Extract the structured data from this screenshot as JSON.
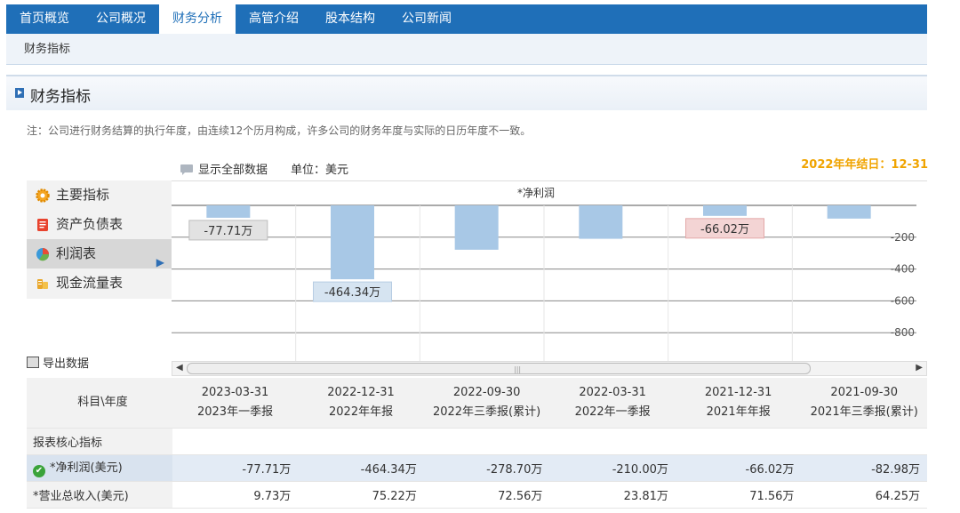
{
  "nav": {
    "tabs": [
      {
        "label": "首页概览"
      },
      {
        "label": "公司概况"
      },
      {
        "label": "财务分析"
      },
      {
        "label": "高管介绍"
      },
      {
        "label": "股本结构"
      },
      {
        "label": "公司新闻"
      }
    ],
    "active_index": 2,
    "sub_label": "财务指标"
  },
  "section": {
    "title": "财务指标",
    "note": "注：公司进行财务结算的执行年度，由连续12个历月构成，许多公司的财务年度与实际的日历年度不一致。",
    "show_all_label": "显示全部数据",
    "unit_label": "单位：美元",
    "fiscal_year_end": "2022年年结日：12-31",
    "export_label": "导出数据"
  },
  "menu": {
    "items": [
      {
        "label": "主要指标",
        "icon": "gear-icon"
      },
      {
        "label": "资产负债表",
        "icon": "document-icon"
      },
      {
        "label": "利润表",
        "icon": "pie-chart-icon"
      },
      {
        "label": "现金流量表",
        "icon": "coins-icon"
      }
    ],
    "active_index": 2
  },
  "chart_data": {
    "type": "bar",
    "title": "*净利润",
    "categories": [
      "2023-03-31",
      "2022-12-31",
      "2022-09-30",
      "2022-03-31",
      "2021-12-31",
      "2021-09-30"
    ],
    "values": [
      -77.71,
      -464.34,
      -278.7,
      -210.0,
      -66.02,
      -82.98
    ],
    "unit": "万",
    "yticks": [
      -200,
      -400,
      -600,
      -800
    ],
    "ylim": [
      -900,
      0
    ],
    "labels": [
      {
        "index": 0,
        "text": "-77.71万",
        "style": "gray"
      },
      {
        "index": 1,
        "text": "-464.34万",
        "style": "blue"
      },
      {
        "index": 4,
        "text": "-66.02万",
        "style": "red"
      }
    ],
    "colors": {
      "bar": "#a8c8e6",
      "label_gray": "#e2e2e2",
      "label_blue": "#d6e4f1",
      "label_red": "#f3d4d4"
    }
  },
  "table": {
    "corner_label": "科目\\年度",
    "columns": [
      {
        "date": "2023-03-31",
        "period": "2023年一季报"
      },
      {
        "date": "2022-12-31",
        "period": "2022年年报"
      },
      {
        "date": "2022-09-30",
        "period": "2022年三季报(累计)"
      },
      {
        "date": "2022-03-31",
        "period": "2022年一季报"
      },
      {
        "date": "2021-12-31",
        "period": "2021年年报"
      },
      {
        "date": "2021-09-30",
        "period": "2021年三季报(累计)"
      }
    ],
    "rows": [
      {
        "label": "报表核心指标",
        "values": [
          "",
          "",
          "",
          "",
          "",
          ""
        ]
      },
      {
        "label": "*净利润(美元)",
        "values": [
          "-77.71万",
          "-464.34万",
          "-278.70万",
          "-210.00万",
          "-66.02万",
          "-82.98万"
        ],
        "checked": true
      },
      {
        "label": "*营业总收入(美元)",
        "values": [
          "9.73万",
          "75.22万",
          "72.56万",
          "23.81万",
          "71.56万",
          "64.25万"
        ]
      }
    ]
  }
}
